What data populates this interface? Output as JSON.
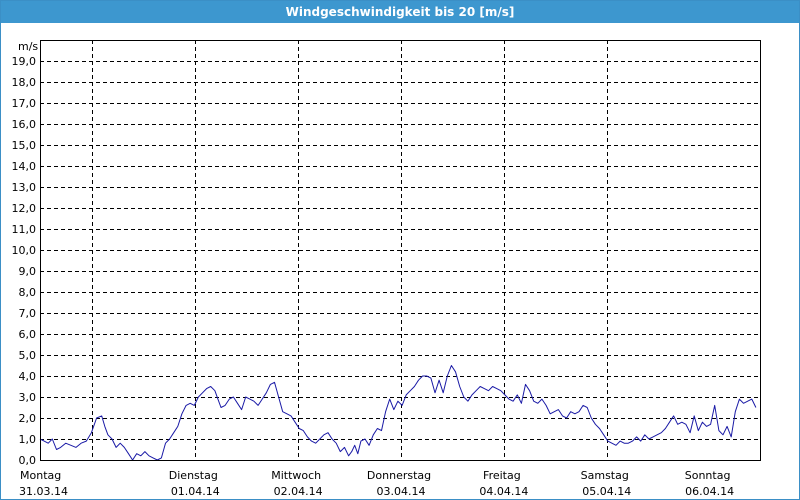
{
  "window": {
    "title": "Windgeschwindigkeit bis 20 [m/s]"
  },
  "colors": {
    "title_bar": "#3d97cf",
    "series": "#1a1aa6",
    "grid": "#000000"
  },
  "chart_data": {
    "type": "line",
    "title": "Windgeschwindigkeit bis 20 [m/s]",
    "ylabel": "m/s",
    "ylim": [
      0,
      20
    ],
    "yticks": [
      "0,0",
      "1,0",
      "2,0",
      "3,0",
      "4,0",
      "5,0",
      "6,0",
      "7,0",
      "8,0",
      "9,0",
      "10,0",
      "11,0",
      "12,0",
      "13,0",
      "14,0",
      "15,0",
      "16,0",
      "17,0",
      "18,0",
      "19,0"
    ],
    "xlim": [
      0,
      7
    ],
    "grid": true,
    "days": [
      {
        "day": "Montag",
        "date": "31.03.14"
      },
      {
        "day": "Dienstag",
        "date": "01.04.14"
      },
      {
        "day": "Mittwoch",
        "date": "02.04.14"
      },
      {
        "day": "Donnerstag",
        "date": "03.04.14"
      },
      {
        "day": "Freitag",
        "date": "04.04.14"
      },
      {
        "day": "Samstag",
        "date": "05.04.14"
      },
      {
        "day": "Sonntag",
        "date": "06.04.14"
      }
    ],
    "series": [
      {
        "values": [
          [
            0.0,
            1.0
          ],
          [
            0.04,
            0.9
          ],
          [
            0.08,
            0.8
          ],
          [
            0.12,
            1.0
          ],
          [
            0.16,
            0.5
          ],
          [
            0.2,
            0.6
          ],
          [
            0.25,
            0.8
          ],
          [
            0.3,
            0.7
          ],
          [
            0.35,
            0.6
          ],
          [
            0.4,
            0.8
          ],
          [
            0.45,
            0.9
          ],
          [
            0.5,
            1.3
          ],
          [
            0.55,
            2.0
          ],
          [
            0.6,
            2.1
          ],
          [
            0.63,
            1.6
          ],
          [
            0.66,
            1.2
          ],
          [
            0.7,
            1.0
          ],
          [
            0.74,
            0.6
          ],
          [
            0.78,
            0.8
          ],
          [
            0.82,
            0.6
          ],
          [
            0.86,
            0.3
          ],
          [
            0.9,
            0.0
          ],
          [
            0.94,
            0.3
          ],
          [
            0.98,
            0.2
          ],
          [
            1.02,
            0.4
          ],
          [
            1.06,
            0.2
          ],
          [
            1.1,
            0.1
          ],
          [
            1.14,
            0.0
          ],
          [
            1.18,
            0.1
          ],
          [
            1.22,
            0.8
          ],
          [
            1.26,
            1.0
          ],
          [
            1.3,
            1.3
          ],
          [
            1.34,
            1.6
          ],
          [
            1.38,
            2.2
          ],
          [
            1.42,
            2.6
          ],
          [
            1.46,
            2.7
          ],
          [
            1.5,
            2.6
          ],
          [
            1.54,
            3.0
          ],
          [
            1.58,
            3.2
          ],
          [
            1.62,
            3.4
          ],
          [
            1.66,
            3.5
          ],
          [
            1.7,
            3.3
          ],
          [
            1.73,
            2.9
          ],
          [
            1.76,
            2.5
          ],
          [
            1.8,
            2.6
          ],
          [
            1.84,
            2.9
          ],
          [
            1.88,
            3.0
          ],
          [
            1.92,
            2.7
          ],
          [
            1.96,
            2.4
          ],
          [
            2.0,
            3.0
          ],
          [
            2.04,
            2.9
          ],
          [
            2.08,
            2.8
          ],
          [
            2.12,
            2.6
          ],
          [
            2.16,
            2.9
          ],
          [
            2.2,
            3.2
          ],
          [
            2.24,
            3.6
          ],
          [
            2.28,
            3.7
          ],
          [
            2.32,
            3.0
          ],
          [
            2.36,
            2.3
          ],
          [
            2.4,
            2.2
          ],
          [
            2.44,
            2.1
          ],
          [
            2.48,
            1.8
          ],
          [
            2.52,
            1.5
          ],
          [
            2.56,
            1.4
          ],
          [
            2.6,
            1.1
          ],
          [
            2.64,
            0.9
          ],
          [
            2.68,
            0.8
          ],
          [
            2.72,
            1.0
          ],
          [
            2.76,
            1.2
          ],
          [
            2.8,
            1.3
          ],
          [
            2.84,
            1.0
          ],
          [
            2.88,
            0.8
          ],
          [
            2.92,
            0.4
          ],
          [
            2.96,
            0.6
          ],
          [
            3.0,
            0.2
          ],
          [
            3.03,
            0.4
          ],
          [
            3.06,
            0.7
          ],
          [
            3.09,
            0.3
          ],
          [
            3.12,
            0.9
          ],
          [
            3.16,
            1.0
          ],
          [
            3.2,
            0.7
          ],
          [
            3.24,
            1.2
          ],
          [
            3.28,
            1.5
          ],
          [
            3.32,
            1.4
          ],
          [
            3.36,
            2.3
          ],
          [
            3.4,
            2.9
          ],
          [
            3.44,
            2.4
          ],
          [
            3.48,
            2.8
          ],
          [
            3.52,
            2.6
          ],
          [
            3.56,
            3.1
          ],
          [
            3.6,
            3.3
          ],
          [
            3.64,
            3.5
          ],
          [
            3.68,
            3.8
          ],
          [
            3.72,
            4.0
          ],
          [
            3.76,
            4.0
          ],
          [
            3.8,
            3.9
          ],
          [
            3.84,
            3.2
          ],
          [
            3.88,
            3.8
          ],
          [
            3.92,
            3.2
          ],
          [
            3.96,
            4.0
          ],
          [
            4.0,
            4.5
          ],
          [
            4.04,
            4.2
          ],
          [
            4.08,
            3.5
          ],
          [
            4.12,
            3.0
          ],
          [
            4.16,
            2.8
          ],
          [
            4.2,
            3.1
          ],
          [
            4.24,
            3.3
          ],
          [
            4.28,
            3.5
          ],
          [
            4.32,
            3.4
          ],
          [
            4.36,
            3.3
          ],
          [
            4.4,
            3.5
          ],
          [
            4.44,
            3.4
          ],
          [
            4.48,
            3.3
          ],
          [
            4.52,
            3.1
          ],
          [
            4.56,
            2.9
          ],
          [
            4.6,
            2.8
          ],
          [
            4.64,
            3.1
          ],
          [
            4.68,
            2.7
          ],
          [
            4.72,
            3.6
          ],
          [
            4.76,
            3.3
          ],
          [
            4.8,
            2.8
          ],
          [
            4.84,
            2.7
          ],
          [
            4.88,
            2.9
          ],
          [
            4.92,
            2.6
          ],
          [
            4.96,
            2.2
          ],
          [
            5.0,
            2.3
          ],
          [
            5.04,
            2.4
          ],
          [
            5.08,
            2.1
          ],
          [
            5.12,
            2.0
          ],
          [
            5.16,
            2.3
          ],
          [
            5.2,
            2.2
          ],
          [
            5.24,
            2.3
          ],
          [
            5.28,
            2.6
          ],
          [
            5.32,
            2.5
          ],
          [
            5.36,
            2.0
          ],
          [
            5.4,
            1.7
          ],
          [
            5.44,
            1.5
          ],
          [
            5.48,
            1.2
          ],
          [
            5.52,
            0.9
          ],
          [
            5.56,
            0.8
          ],
          [
            5.6,
            0.7
          ],
          [
            5.64,
            0.9
          ],
          [
            5.68,
            0.8
          ],
          [
            5.72,
            0.8
          ],
          [
            5.76,
            0.9
          ],
          [
            5.8,
            1.1
          ],
          [
            5.84,
            0.9
          ],
          [
            5.88,
            1.2
          ],
          [
            5.92,
            1.0
          ],
          [
            5.96,
            1.1
          ],
          [
            6.0,
            1.2
          ],
          [
            6.04,
            1.3
          ],
          [
            6.08,
            1.5
          ],
          [
            6.12,
            1.8
          ],
          [
            6.16,
            2.1
          ],
          [
            6.2,
            1.7
          ],
          [
            6.24,
            1.8
          ],
          [
            6.28,
            1.7
          ],
          [
            6.32,
            1.3
          ],
          [
            6.36,
            2.1
          ],
          [
            6.4,
            1.4
          ],
          [
            6.44,
            1.8
          ],
          [
            6.48,
            1.6
          ],
          [
            6.52,
            1.7
          ],
          [
            6.56,
            2.6
          ],
          [
            6.6,
            1.4
          ],
          [
            6.64,
            1.2
          ],
          [
            6.68,
            1.6
          ],
          [
            6.72,
            1.1
          ],
          [
            6.76,
            2.3
          ],
          [
            6.8,
            2.9
          ],
          [
            6.84,
            2.7
          ],
          [
            6.88,
            2.8
          ],
          [
            6.92,
            2.9
          ],
          [
            6.96,
            2.5
          ]
        ]
      }
    ]
  }
}
